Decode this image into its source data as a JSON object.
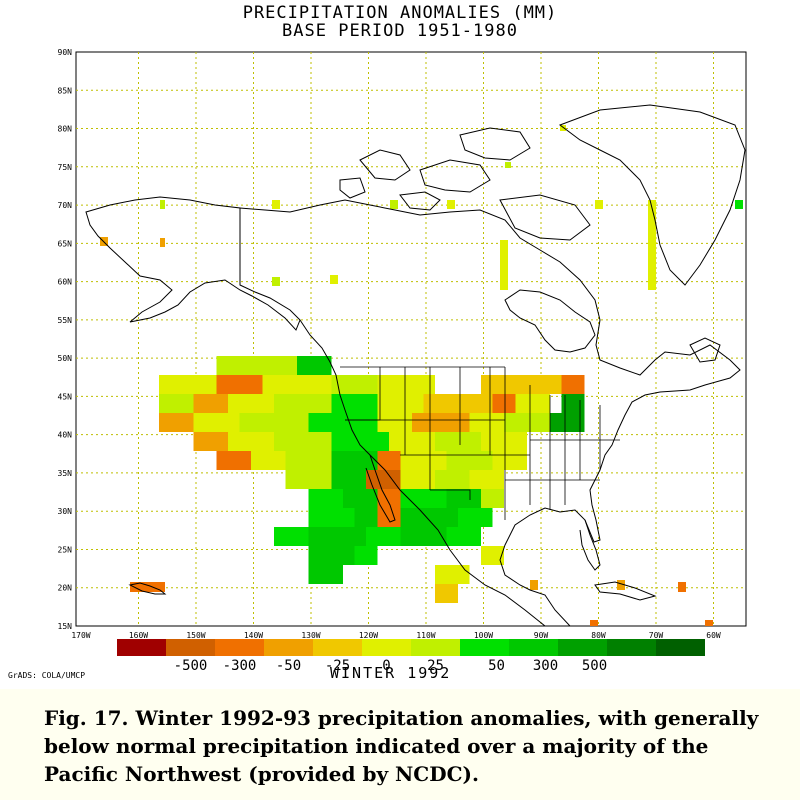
{
  "title_line1": "PRECIPITATION ANOMALIES (MM)",
  "title_line2": "BASE PERIOD 1951-1980",
  "subtitle": "WINTER 1992",
  "grads_label": "GrADS: COLA/UMCP",
  "caption": "Fig. 17.  Winter 1992-93 precipitation anomalies, with generally below normal precipitation indicated over a majority of the Pacific Northwest (provided by NCDC).",
  "lat_labels": [
    "90N",
    "85N",
    "80N",
    "75N",
    "70N",
    "65N",
    "60N",
    "55N",
    "50N",
    "45N",
    "40N",
    "35N",
    "30N",
    "25N",
    "20N",
    "15N"
  ],
  "lon_labels": [
    "170W",
    "160W",
    "150W",
    "140W",
    "130W",
    "120W",
    "110W",
    "100W",
    "90W",
    "80W",
    "70W",
    "60W"
  ],
  "legend": {
    "colors": [
      "#a00000",
      "#d06000",
      "#f07000",
      "#f0a000",
      "#f0c800",
      "#e0f000",
      "#c0f000",
      "#00e000",
      "#00c800",
      "#00a000",
      "#008000",
      "#006000"
    ],
    "labels": [
      "-500",
      "-300",
      "-50",
      "-25",
      "0",
      "25",
      "50",
      "300",
      "500"
    ]
  },
  "colors": {
    "water_bg": "#ffffff",
    "coast": "#000000",
    "grid": "#bfbf00"
  }
}
